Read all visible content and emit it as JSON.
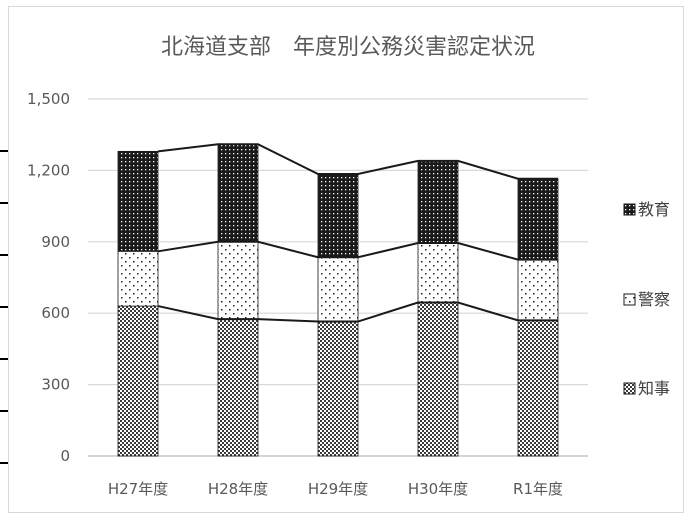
{
  "chart_data": {
    "type": "bar",
    "stacked": true,
    "title": "北海道支部　年度別公務災害認定状況",
    "xlabel": "",
    "ylabel": "",
    "categories": [
      "H27年度",
      "H28年度",
      "H29年度",
      "H30年度",
      "R1年度"
    ],
    "ylim": [
      0,
      1500
    ],
    "yticks": [
      0,
      300,
      600,
      900,
      1200,
      1500
    ],
    "ytick_labels": [
      "0",
      "300",
      "600",
      "900",
      "1,200",
      "1,500"
    ],
    "grid": true,
    "legend_position": "right",
    "series": [
      {
        "name": "知事",
        "values": [
          630,
          575,
          565,
          645,
          570
        ],
        "pattern": "dense-dots"
      },
      {
        "name": "警察",
        "values": [
          230,
          325,
          270,
          250,
          255
        ],
        "pattern": "sparse-dots"
      },
      {
        "name": "教育",
        "values": [
          420,
          410,
          350,
          345,
          340
        ],
        "pattern": "dark-dots"
      }
    ],
    "series_lines": true
  }
}
